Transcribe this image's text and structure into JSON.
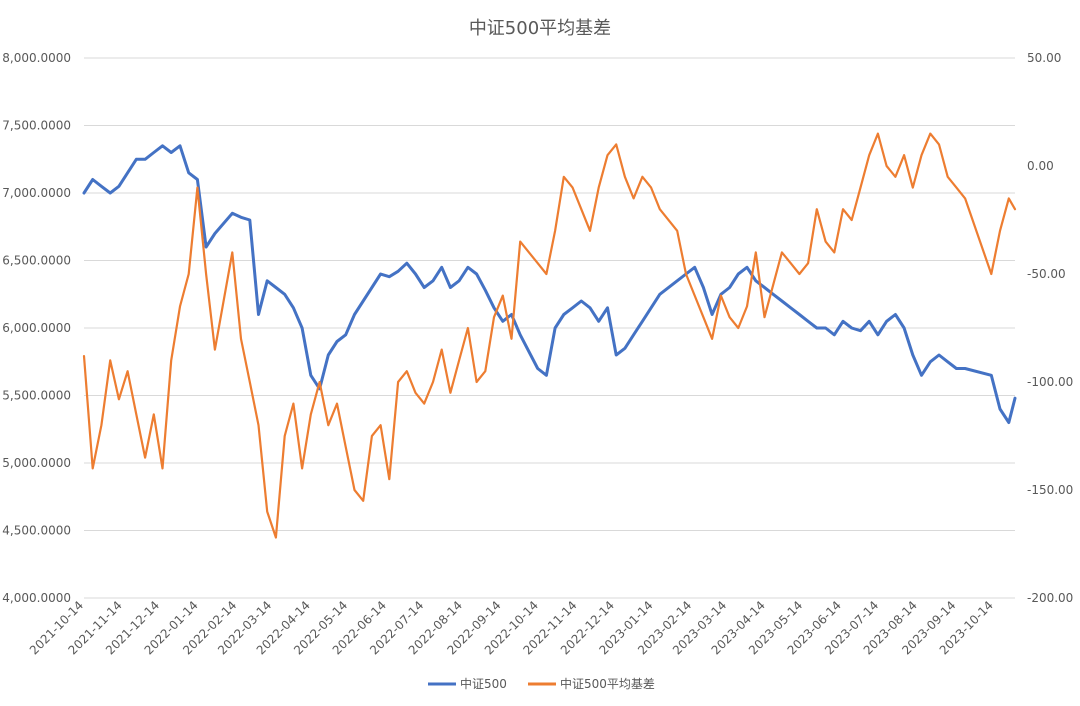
{
  "chart_data": {
    "type": "line",
    "title": "中证500平均基差",
    "xlabel": "",
    "ylabel": "",
    "y_left": {
      "ylim": [
        4000,
        8000
      ],
      "ticks": [
        4000,
        4500,
        5000,
        5500,
        6000,
        6500,
        7000,
        7500,
        8000
      ],
      "tick_labels": [
        "4,000.0000",
        "4,500.0000",
        "5,000.0000",
        "5,500.0000",
        "6,000.0000",
        "6,500.0000",
        "7,000.0000",
        "7,500.0000",
        "8,000.0000"
      ]
    },
    "y_right": {
      "ylim": [
        -200,
        50
      ],
      "ticks": [
        -200,
        -150,
        -100,
        -50,
        0,
        50
      ],
      "tick_labels": [
        "-200.00",
        "-150.00",
        "-100.00",
        "-50.00",
        "0.00",
        "50.00"
      ]
    },
    "x_tick_labels": [
      "2021-10-14",
      "2021-11-14",
      "2021-12-14",
      "2022-01-14",
      "2022-02-14",
      "2022-03-14",
      "2022-04-14",
      "2022-05-14",
      "2022-06-14",
      "2022-07-14",
      "2022-08-14",
      "2022-09-14",
      "2022-10-14",
      "2022-11-14",
      "2022-12-14",
      "2023-01-14",
      "2023-02-14",
      "2023-03-14",
      "2023-04-14",
      "2023-05-14",
      "2023-06-14",
      "2023-07-14",
      "2023-08-14",
      "2023-09-14",
      "2023-10-14"
    ],
    "grid": true,
    "legend_position": "bottom",
    "series": [
      {
        "name": "中证500",
        "axis": "left",
        "color": "#4472c4",
        "x": [
          "2021-10-14",
          "2021-10-21",
          "2021-10-28",
          "2021-11-04",
          "2021-11-11",
          "2021-11-18",
          "2021-11-25",
          "2021-12-02",
          "2021-12-09",
          "2021-12-16",
          "2021-12-23",
          "2021-12-30",
          "2022-01-06",
          "2022-01-13",
          "2022-01-20",
          "2022-01-27",
          "2022-02-10",
          "2022-02-17",
          "2022-02-24",
          "2022-03-03",
          "2022-03-10",
          "2022-03-17",
          "2022-03-24",
          "2022-03-31",
          "2022-04-07",
          "2022-04-14",
          "2022-04-21",
          "2022-04-28",
          "2022-05-05",
          "2022-05-12",
          "2022-05-19",
          "2022-05-26",
          "2022-06-02",
          "2022-06-09",
          "2022-06-16",
          "2022-06-23",
          "2022-06-30",
          "2022-07-07",
          "2022-07-14",
          "2022-07-21",
          "2022-07-28",
          "2022-08-04",
          "2022-08-11",
          "2022-08-18",
          "2022-08-25",
          "2022-09-01",
          "2022-09-08",
          "2022-09-15",
          "2022-09-22",
          "2022-09-29",
          "2022-10-13",
          "2022-10-20",
          "2022-10-27",
          "2022-11-03",
          "2022-11-10",
          "2022-11-17",
          "2022-11-24",
          "2022-12-01",
          "2022-12-08",
          "2022-12-15",
          "2022-12-22",
          "2022-12-29",
          "2023-01-05",
          "2023-01-12",
          "2023-01-19",
          "2023-02-02",
          "2023-02-09",
          "2023-02-16",
          "2023-02-23",
          "2023-03-02",
          "2023-03-09",
          "2023-03-16",
          "2023-03-23",
          "2023-03-30",
          "2023-04-06",
          "2023-04-13",
          "2023-04-20",
          "2023-04-27",
          "2023-05-04",
          "2023-05-11",
          "2023-05-18",
          "2023-05-25",
          "2023-06-01",
          "2023-06-08",
          "2023-06-15",
          "2023-06-22",
          "2023-06-29",
          "2023-07-06",
          "2023-07-13",
          "2023-07-20",
          "2023-07-27",
          "2023-08-03",
          "2023-08-10",
          "2023-08-17",
          "2023-08-24",
          "2023-08-31",
          "2023-09-07",
          "2023-09-14",
          "2023-09-21",
          "2023-10-12",
          "2023-10-19",
          "2023-10-26",
          "2023-10-31"
        ],
        "values": [
          7000,
          7100,
          7050,
          7000,
          7050,
          7150,
          7250,
          7250,
          7300,
          7350,
          7300,
          7350,
          7150,
          7100,
          6600,
          6700,
          6850,
          6820,
          6800,
          6100,
          6350,
          6300,
          6250,
          6150,
          6000,
          5650,
          5550,
          5800,
          5900,
          5950,
          6100,
          6200,
          6300,
          6400,
          6380,
          6420,
          6480,
          6400,
          6300,
          6350,
          6450,
          6300,
          6350,
          6450,
          6400,
          6280,
          6150,
          6050,
          6100,
          5950,
          5700,
          5650,
          6000,
          6100,
          6150,
          6200,
          6150,
          6050,
          6150,
          5800,
          5850,
          5950,
          6050,
          6150,
          6250,
          6350,
          6400,
          6450,
          6300,
          6100,
          6250,
          6300,
          6400,
          6450,
          6350,
          6300,
          6250,
          6200,
          6150,
          6100,
          6050,
          6000,
          6000,
          5950,
          6050,
          6000,
          5980,
          6050,
          5950,
          6050,
          6100,
          6000,
          5800,
          5650,
          5750,
          5800,
          5750,
          5700,
          5700,
          5650,
          5400,
          5300,
          5480
        ]
      },
      {
        "name": "中证500平均基差",
        "axis": "right",
        "color": "#ed7d31",
        "x": [
          "2021-10-14",
          "2021-10-21",
          "2021-10-28",
          "2021-11-04",
          "2021-11-11",
          "2021-11-18",
          "2021-11-25",
          "2021-12-02",
          "2021-12-09",
          "2021-12-16",
          "2021-12-23",
          "2021-12-30",
          "2022-01-06",
          "2022-01-13",
          "2022-01-20",
          "2022-01-27",
          "2022-02-10",
          "2022-02-17",
          "2022-02-24",
          "2022-03-03",
          "2022-03-10",
          "2022-03-17",
          "2022-03-24",
          "2022-03-31",
          "2022-04-07",
          "2022-04-14",
          "2022-04-21",
          "2022-04-28",
          "2022-05-05",
          "2022-05-12",
          "2022-05-19",
          "2022-05-26",
          "2022-06-02",
          "2022-06-09",
          "2022-06-16",
          "2022-06-23",
          "2022-06-30",
          "2022-07-07",
          "2022-07-14",
          "2022-07-21",
          "2022-07-28",
          "2022-08-04",
          "2022-08-11",
          "2022-08-18",
          "2022-08-25",
          "2022-09-01",
          "2022-09-08",
          "2022-09-15",
          "2022-09-22",
          "2022-09-29",
          "2022-10-13",
          "2022-10-20",
          "2022-10-27",
          "2022-11-03",
          "2022-11-10",
          "2022-11-17",
          "2022-11-24",
          "2022-12-01",
          "2022-12-08",
          "2022-12-15",
          "2022-12-22",
          "2022-12-29",
          "2023-01-05",
          "2023-01-12",
          "2023-01-19",
          "2023-02-02",
          "2023-02-09",
          "2023-02-16",
          "2023-02-23",
          "2023-03-02",
          "2023-03-09",
          "2023-03-16",
          "2023-03-23",
          "2023-03-30",
          "2023-04-06",
          "2023-04-13",
          "2023-04-20",
          "2023-04-27",
          "2023-05-04",
          "2023-05-11",
          "2023-05-18",
          "2023-05-25",
          "2023-06-01",
          "2023-06-08",
          "2023-06-15",
          "2023-06-22",
          "2023-06-29",
          "2023-07-06",
          "2023-07-13",
          "2023-07-20",
          "2023-07-27",
          "2023-08-03",
          "2023-08-10",
          "2023-08-17",
          "2023-08-24",
          "2023-08-31",
          "2023-09-07",
          "2023-09-14",
          "2023-09-21",
          "2023-10-12",
          "2023-10-19",
          "2023-10-26",
          "2023-10-31"
        ],
        "values": [
          -88,
          -140,
          -120,
          -90,
          -108,
          -95,
          -115,
          -135,
          -115,
          -140,
          -90,
          -65,
          -50,
          -10,
          -50,
          -85,
          -40,
          -80,
          -100,
          -120,
          -160,
          -172,
          -125,
          -110,
          -140,
          -115,
          -100,
          -120,
          -110,
          -130,
          -150,
          -155,
          -125,
          -120,
          -145,
          -100,
          -95,
          -105,
          -110,
          -100,
          -85,
          -105,
          -90,
          -75,
          -100,
          -95,
          -70,
          -60,
          -80,
          -35,
          -45,
          -50,
          -30,
          -5,
          -10,
          -20,
          -30,
          -10,
          5,
          10,
          -5,
          -15,
          -5,
          -10,
          -20,
          -30,
          -50,
          -60,
          -70,
          -80,
          -60,
          -70,
          -75,
          -65,
          -40,
          -70,
          -55,
          -40,
          -45,
          -50,
          -45,
          -20,
          -35,
          -40,
          -20,
          -25,
          -10,
          5,
          15,
          0,
          -5,
          5,
          -10,
          5,
          15,
          10,
          -5,
          -10,
          -15,
          -50,
          -30,
          -15,
          -20
        ]
      }
    ]
  }
}
